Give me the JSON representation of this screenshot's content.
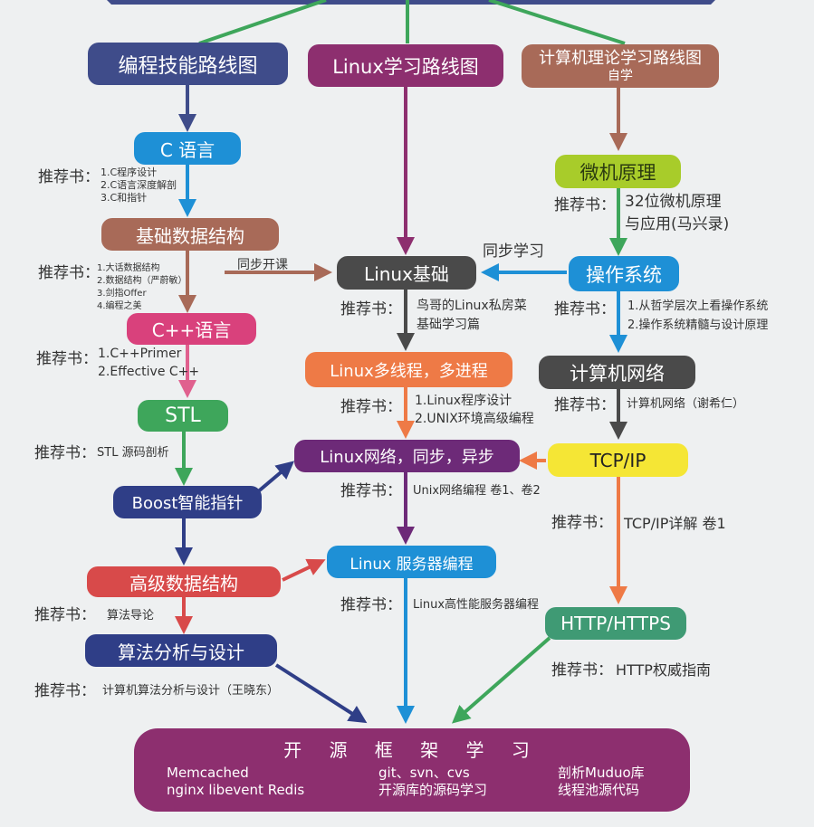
{
  "colors": {
    "purple": "#8d2f6f",
    "navy": "#3f4c8a",
    "brown": "#a86a58",
    "blue": "#1e90d6",
    "green": "#3ea65b",
    "lime": "#a8cc2a",
    "gray": "#4a4a4a",
    "orange": "#ee7a46",
    "yellow": "#f5e635",
    "violet": "#6d2a78",
    "pink": "#d9417c",
    "red": "#d84a4a",
    "darkblue": "#2f3e87",
    "teal": "#3f9a74"
  },
  "nodes": {
    "prog_roadmap": "编程技能路线图",
    "linux_roadmap": "Linux学习路线图",
    "cs_theory": "计算机理论学习路线图",
    "cs_theory_sub": "自学",
    "c_lang": "C 语言",
    "microcomputer": "微机原理",
    "basic_ds": "基础数据结构",
    "linux_basics": "Linux基础",
    "os": "操作系统",
    "cpp": "C++语言",
    "linux_mt": "Linux多线程，多进程",
    "cs_network": "计算机网络",
    "stl": "STL",
    "linux_net": "Linux网络，同步，异步",
    "tcpip": "TCP/IP",
    "boost": "Boost智能指针",
    "linux_server": "Linux 服务器编程",
    "adv_ds": "高级数据结构",
    "http": "HTTP/HTTPS",
    "algo": "算法分析与设计"
  },
  "labels": {
    "sync_course": "同步开课",
    "sync_study": "同步学习"
  },
  "books": {
    "c": {
      "tag": "推荐书：",
      "items": [
        "1.C程序设计",
        "2.C语言深度解剖",
        "3.C和指针"
      ]
    },
    "micro": {
      "tag": "推荐书：",
      "items": [
        "32位微机原理",
        "与应用(马兴录)"
      ]
    },
    "ds": {
      "tag": "推荐书：",
      "items": [
        "1.大话数据结构",
        "2.数据结构（严蔚敏）",
        "3.剑指Offer",
        "4.编程之美"
      ]
    },
    "linux": {
      "tag": "推荐书：",
      "items": [
        "鸟哥的Linux私房菜",
        "基础学习篇"
      ]
    },
    "os": {
      "tag": "推荐书：",
      "items": [
        "1.从哲学层次上看操作系统",
        "2.操作系统精髓与设计原理"
      ]
    },
    "cpp": {
      "tag": "推荐书：",
      "items": [
        "1.C++Primer",
        "2.Effective C++"
      ]
    },
    "linux_mt": {
      "tag": "推荐书：",
      "items": [
        "1.Linux程序设计",
        "2.UNIX环境高级编程"
      ]
    },
    "network": {
      "tag": "推荐书：",
      "text": "计算机网络（谢希仁）"
    },
    "stl": {
      "tag": "推荐书：",
      "text": "STL 源码剖析"
    },
    "linux_net": {
      "tag": "推荐书：",
      "text": "Unix网络编程 卷1、卷2"
    },
    "tcpip": {
      "tag": "推荐书：",
      "text": "TCP/IP详解 卷1"
    },
    "server": {
      "tag": "推荐书：",
      "text": "Linux高性能服务器编程"
    },
    "adv_ds": {
      "tag": "推荐书：",
      "text": "算法导论"
    },
    "http": {
      "tag": "推荐书：",
      "text": "HTTP权威指南"
    },
    "algo": {
      "tag": "推荐书：",
      "text": "计算机算法分析与设计（王晓东）"
    }
  },
  "bottom": {
    "title": "开 源 框 架 学 习",
    "col1": [
      "Memcached",
      "nginx libevent Redis"
    ],
    "col2": [
      "git、svn、cvs",
      "开源库的源码学习"
    ],
    "col3": [
      "剖析Muduo库",
      "线程池源代码"
    ]
  }
}
